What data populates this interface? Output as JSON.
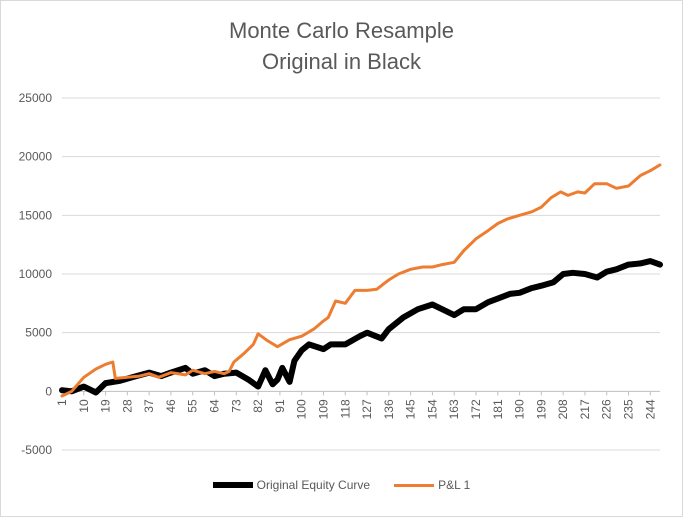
{
  "chart_data": {
    "type": "line",
    "title": "Monte Carlo Resample",
    "subtitle": "Original in Black",
    "ylim": [
      -5000,
      25000
    ],
    "yticks": [
      -5000,
      0,
      5000,
      10000,
      15000,
      20000,
      25000
    ],
    "xticks": [
      "1",
      "10",
      "19",
      "28",
      "37",
      "46",
      "55",
      "64",
      "73",
      "82",
      "91",
      "100",
      "109",
      "118",
      "127",
      "136",
      "145",
      "154",
      "163",
      "172",
      "181",
      "190",
      "199",
      "208",
      "217",
      "226",
      "235",
      "244"
    ],
    "grid": true,
    "legend_position": "bottom",
    "series": [
      {
        "name": "Original Equity Curve",
        "color": "#000000",
        "points": [
          [
            1,
            100
          ],
          [
            5,
            0
          ],
          [
            10,
            400
          ],
          [
            15,
            -100
          ],
          [
            19,
            700
          ],
          [
            25,
            900
          ],
          [
            30,
            1200
          ],
          [
            37,
            1600
          ],
          [
            42,
            1300
          ],
          [
            46,
            1600
          ],
          [
            52,
            2000
          ],
          [
            55,
            1500
          ],
          [
            60,
            1800
          ],
          [
            64,
            1300
          ],
          [
            68,
            1500
          ],
          [
            73,
            1600
          ],
          [
            78,
            1000
          ],
          [
            82,
            400
          ],
          [
            85,
            1800
          ],
          [
            88,
            600
          ],
          [
            90,
            1000
          ],
          [
            92,
            2000
          ],
          [
            95,
            800
          ],
          [
            97,
            2600
          ],
          [
            100,
            3500
          ],
          [
            103,
            4000
          ],
          [
            109,
            3600
          ],
          [
            112,
            4000
          ],
          [
            118,
            4000
          ],
          [
            124,
            4700
          ],
          [
            127,
            5000
          ],
          [
            133,
            4500
          ],
          [
            136,
            5300
          ],
          [
            142,
            6300
          ],
          [
            148,
            7000
          ],
          [
            154,
            7400
          ],
          [
            158,
            7000
          ],
          [
            163,
            6500
          ],
          [
            167,
            7000
          ],
          [
            172,
            7000
          ],
          [
            177,
            7600
          ],
          [
            181,
            7900
          ],
          [
            186,
            8300
          ],
          [
            190,
            8400
          ],
          [
            195,
            8800
          ],
          [
            199,
            9000
          ],
          [
            204,
            9300
          ],
          [
            208,
            10000
          ],
          [
            212,
            10100
          ],
          [
            217,
            10000
          ],
          [
            222,
            9700
          ],
          [
            226,
            10200
          ],
          [
            230,
            10400
          ],
          [
            235,
            10800
          ],
          [
            240,
            10900
          ],
          [
            244,
            11100
          ],
          [
            248,
            10800
          ]
        ]
      },
      {
        "name": "P&L 1",
        "color": "#ED7D31",
        "points": [
          [
            1,
            -400
          ],
          [
            5,
            0
          ],
          [
            10,
            1200
          ],
          [
            15,
            1900
          ],
          [
            19,
            2300
          ],
          [
            22,
            2500
          ],
          [
            23,
            1100
          ],
          [
            28,
            1200
          ],
          [
            33,
            1300
          ],
          [
            37,
            1500
          ],
          [
            41,
            1200
          ],
          [
            46,
            1600
          ],
          [
            52,
            1400
          ],
          [
            55,
            1800
          ],
          [
            60,
            1500
          ],
          [
            64,
            1700
          ],
          [
            68,
            1500
          ],
          [
            70,
            1700
          ],
          [
            72,
            2500
          ],
          [
            76,
            3200
          ],
          [
            80,
            4000
          ],
          [
            82,
            4900
          ],
          [
            86,
            4300
          ],
          [
            90,
            3800
          ],
          [
            95,
            4400
          ],
          [
            100,
            4700
          ],
          [
            105,
            5300
          ],
          [
            109,
            6000
          ],
          [
            111,
            6300
          ],
          [
            114,
            7700
          ],
          [
            118,
            7500
          ],
          [
            122,
            8600
          ],
          [
            127,
            8600
          ],
          [
            131,
            8700
          ],
          [
            136,
            9500
          ],
          [
            140,
            10000
          ],
          [
            145,
            10400
          ],
          [
            150,
            10600
          ],
          [
            154,
            10600
          ],
          [
            158,
            10800
          ],
          [
            163,
            11000
          ],
          [
            167,
            12000
          ],
          [
            172,
            13000
          ],
          [
            177,
            13700
          ],
          [
            181,
            14300
          ],
          [
            185,
            14700
          ],
          [
            190,
            15000
          ],
          [
            195,
            15300
          ],
          [
            199,
            15700
          ],
          [
            203,
            16500
          ],
          [
            207,
            17000
          ],
          [
            210,
            16700
          ],
          [
            214,
            17000
          ],
          [
            217,
            16900
          ],
          [
            221,
            17700
          ],
          [
            226,
            17700
          ],
          [
            230,
            17300
          ],
          [
            235,
            17500
          ],
          [
            240,
            18400
          ],
          [
            244,
            18800
          ],
          [
            248,
            19300
          ]
        ]
      }
    ]
  }
}
